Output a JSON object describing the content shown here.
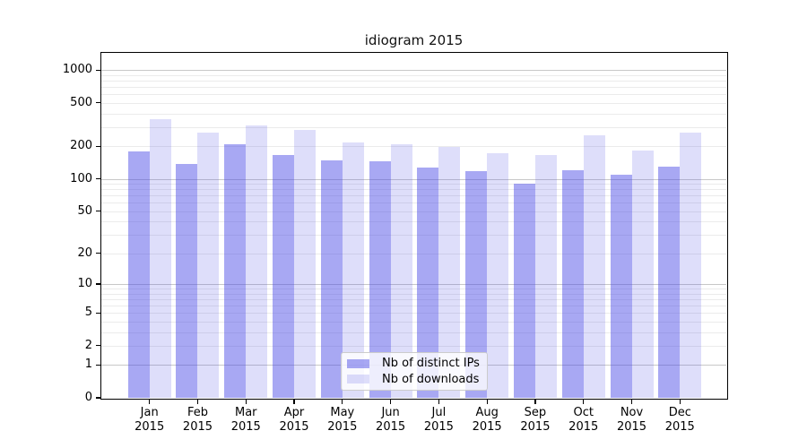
{
  "chart_data": {
    "type": "bar",
    "title": "idiogram 2015",
    "year_label": "2015",
    "categories": [
      "Jan",
      "Feb",
      "Mar",
      "Apr",
      "May",
      "Jun",
      "Jul",
      "Aug",
      "Sep",
      "Oct",
      "Nov",
      "Dec"
    ],
    "series": [
      {
        "name": "Nb of distinct IPs",
        "color": "rgba(70,70,230,0.47)",
        "color_hex": "#a9a9f1",
        "values": [
          180,
          137,
          210,
          165,
          147,
          145,
          128,
          119,
          90,
          120,
          110,
          130
        ]
      },
      {
        "name": "Nb of downloads",
        "color": "rgba(70,70,230,0.18)",
        "color_hex": "#dcdcf8",
        "values": [
          356,
          265,
          310,
          283,
          217,
          210,
          198,
          174,
          167,
          252,
          183,
          265
        ]
      }
    ],
    "y_ticks": [
      0,
      1,
      2,
      5,
      10,
      20,
      50,
      100,
      200,
      500,
      1000
    ],
    "y_scale": "symlog",
    "ylim": [
      0,
      1437
    ],
    "xlabel": "",
    "ylabel": "",
    "grid": "horizontal major+minor",
    "grid_color_major": "#c8c8c8",
    "grid_color_minor": "#ebebeb",
    "axis_color": "#000000",
    "legend_position": "lower center"
  }
}
